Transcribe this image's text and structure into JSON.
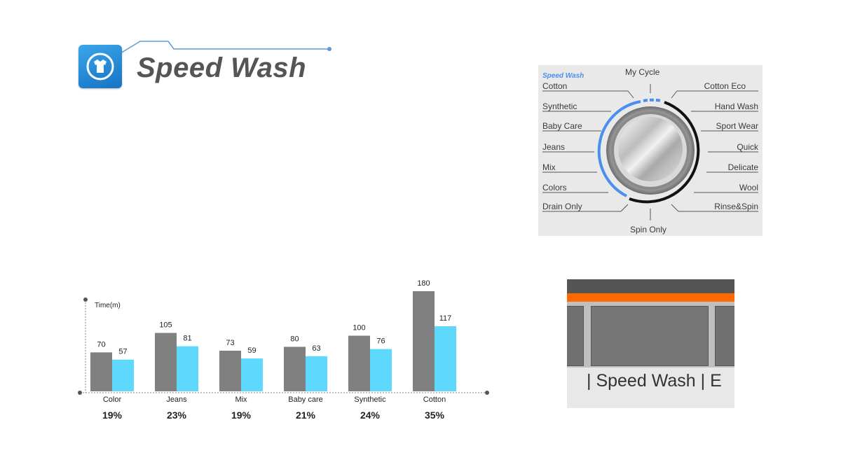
{
  "header": {
    "title": "Speed Wash",
    "logo_icon": "tshirt-clock-icon",
    "accent": "#2b8fd9"
  },
  "dial": {
    "top_badge": "Speed Wash",
    "top_label": "My Cycle",
    "bottom_label": "Spin Only",
    "left_programs": [
      "Cotton",
      "Synthetic",
      "Baby Care",
      "Jeans",
      "Mix",
      "Colors",
      "Drain Only"
    ],
    "right_programs": [
      "Cotton Eco",
      "Hand Wash",
      "Sport Wear",
      "Quick",
      "Delicate",
      "Wool",
      "Rinse&Spin"
    ],
    "arc_color": "#4a8ff0"
  },
  "chart_data": {
    "type": "bar",
    "ylabel": "Time(m)",
    "categories": [
      "Color",
      "Jeans",
      "Mix",
      "Baby care",
      "Synthetic",
      "Cotton"
    ],
    "series": [
      {
        "values": [
          70,
          105,
          73,
          80,
          100,
          180
        ],
        "color": "#808080"
      },
      {
        "values": [
          57,
          81,
          59,
          63,
          76,
          117
        ],
        "color": "#5ed8fc"
      }
    ],
    "percentages": [
      "19%",
      "23%",
      "19%",
      "21%",
      "24%",
      "35%"
    ],
    "ylim": [
      0,
      180
    ]
  },
  "display": {
    "text": "Speed Wash",
    "next_char": "E",
    "bar_color": "#ff6a00"
  }
}
